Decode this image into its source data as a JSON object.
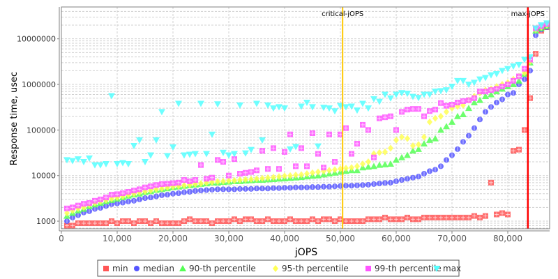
{
  "chart_data": {
    "type": "scatter",
    "xlabel": "jOPS",
    "ylabel": "Response time, usec",
    "yscale": "log",
    "xlim": [
      0,
      87500
    ],
    "ylim": [
      680,
      50000000
    ],
    "x_ticks": [
      0,
      10000,
      20000,
      30000,
      40000,
      50000,
      60000,
      70000,
      80000
    ],
    "x_tick_labels": [
      "0",
      "10,000",
      "20,000",
      "30,000",
      "40,000",
      "50,000",
      "60,000",
      "70,000",
      "80,000"
    ],
    "y_ticks": [
      1000,
      10000,
      100000,
      1000000,
      10000000
    ],
    "y_tick_labels": [
      "1000",
      "10000",
      "100000",
      "1000000",
      "10000000"
    ],
    "grid": true,
    "legend_position": "bottom",
    "markers": [
      {
        "label": "critical-jOPS",
        "x": 50400,
        "color": "#ffc800"
      },
      {
        "label": "max-jOPS",
        "x": 83600,
        "color": "#ff0000"
      }
    ],
    "x": [
      1000,
      2000,
      3000,
      4000,
      5000,
      6000,
      7000,
      8000,
      9000,
      10000,
      11000,
      12000,
      13000,
      14000,
      15000,
      16000,
      17000,
      18000,
      19000,
      20000,
      21000,
      22000,
      23000,
      24000,
      25000,
      26000,
      27000,
      28000,
      29000,
      30000,
      31000,
      32000,
      33000,
      34000,
      35000,
      36000,
      37000,
      38000,
      39000,
      40000,
      41000,
      42000,
      43000,
      44000,
      45000,
      46000,
      47000,
      48000,
      49000,
      50000,
      51000,
      52000,
      53000,
      54000,
      55000,
      56000,
      57000,
      58000,
      59000,
      60000,
      61000,
      62000,
      63000,
      64000,
      65000,
      66000,
      67000,
      68000,
      69000,
      70000,
      71000,
      72000,
      73000,
      74000,
      75000,
      76000,
      77000,
      78000,
      79000,
      80000,
      81000,
      82000,
      83000,
      84000,
      85000,
      86000,
      87000
    ],
    "series": [
      {
        "name": "min",
        "color": "#ff5555",
        "shape": "square",
        "values": [
          800,
          800,
          900,
          900,
          900,
          900,
          900,
          900,
          1000,
          900,
          1000,
          1000,
          900,
          1000,
          1000,
          900,
          1000,
          900,
          900,
          900,
          900,
          1000,
          1100,
          1000,
          1000,
          1000,
          900,
          1000,
          1000,
          1000,
          1100,
          1000,
          1100,
          1100,
          1000,
          1000,
          1100,
          1000,
          1000,
          1000,
          1100,
          1000,
          1000,
          1000,
          1100,
          1000,
          1100,
          1100,
          1000,
          1100,
          1000,
          1000,
          1000,
          1000,
          1100,
          1100,
          1100,
          1200,
          1100,
          1100,
          1100,
          1200,
          1100,
          1100,
          1200,
          1200,
          1200,
          1200,
          1200,
          1200,
          1200,
          1200,
          1200,
          1300,
          1200,
          1300,
          7000,
          1400,
          1500,
          1400,
          35000,
          37000,
          100000,
          500000,
          4700000,
          15000000,
          18000000
        ]
      },
      {
        "name": "median",
        "color": "#5555ff",
        "shape": "circle",
        "values": [
          1000,
          1200,
          1350,
          1550,
          1650,
          1850,
          1950,
          2150,
          2350,
          2450,
          2550,
          2700,
          2800,
          3000,
          3200,
          3300,
          3500,
          3700,
          3800,
          4000,
          4100,
          4300,
          4400,
          4600,
          4700,
          4800,
          4900,
          5000,
          5000,
          5000,
          5000,
          5100,
          5100,
          5100,
          5200,
          5200,
          5200,
          5300,
          5300,
          5400,
          5400,
          5500,
          5500,
          5500,
          5600,
          5600,
          5700,
          5700,
          5800,
          5900,
          6000,
          6000,
          6100,
          6200,
          6300,
          6500,
          6700,
          6900,
          7000,
          7500,
          8000,
          8500,
          9000,
          9500,
          11000,
          12500,
          13500,
          16000,
          22000,
          28000,
          38000,
          55000,
          75000,
          110000,
          170000,
          250000,
          320000,
          400000,
          470000,
          600000,
          650000,
          1000000,
          1300000,
          2000000,
          12000000,
          16000000,
          18000000
        ]
      },
      {
        "name": "90-th percentile",
        "color": "#55ff55",
        "shape": "triangle-up",
        "values": [
          1300,
          1500,
          1700,
          1850,
          2100,
          2300,
          2500,
          2700,
          2900,
          3100,
          3300,
          3600,
          3800,
          4000,
          4300,
          4500,
          4800,
          5000,
          5200,
          5500,
          5700,
          5900,
          6100,
          6300,
          6500,
          6700,
          7000,
          7000,
          7200,
          7300,
          7500,
          7500,
          7700,
          7800,
          8000,
          8000,
          8200,
          8300,
          8500,
          8600,
          8800,
          9000,
          9200,
          9500,
          9800,
          10000,
          10500,
          11000,
          11500,
          12000,
          12500,
          13000,
          13000,
          15000,
          15500,
          16000,
          17000,
          17500,
          18000,
          22000,
          25000,
          28000,
          35000,
          38000,
          50000,
          60000,
          65000,
          100000,
          120000,
          150000,
          200000,
          220000,
          300000,
          400000,
          450000,
          550000,
          600000,
          700000,
          800000,
          900000,
          1000000,
          1200000,
          1700000,
          3000000,
          15000000,
          17000000,
          19000000
        ]
      },
      {
        "name": "95-th percentile",
        "color": "#ffff55",
        "shape": "diamond",
        "values": [
          1500,
          1700,
          1900,
          2000,
          2300,
          2500,
          2700,
          2900,
          3100,
          3300,
          3500,
          3800,
          4000,
          4300,
          4500,
          4700,
          5000,
          5200,
          5500,
          5700,
          5900,
          6100,
          6300,
          6500,
          6700,
          7000,
          7200,
          7400,
          7500,
          7700,
          7800,
          8000,
          8200,
          8300,
          8500,
          8700,
          9000,
          9200,
          9500,
          9800,
          10000,
          10300,
          10500,
          11000,
          11500,
          12000,
          12500,
          13000,
          13500,
          14000,
          14500,
          15000,
          16000,
          18000,
          20000,
          30000,
          32000,
          33000,
          40000,
          60000,
          70000,
          65000,
          45000,
          48000,
          70000,
          150000,
          180000,
          200000,
          250000,
          300000,
          330000,
          350000,
          450000,
          550000,
          650000,
          750000,
          800000,
          900000,
          1000000,
          1100000,
          1300000,
          1500000,
          1800000,
          3200000,
          16000000,
          18000000,
          20000000
        ]
      },
      {
        "name": "99-th percentile",
        "color": "#ff55ff",
        "shape": "square",
        "values": [
          1900,
          2000,
          2200,
          2400,
          2500,
          2800,
          3000,
          3300,
          3800,
          3900,
          4100,
          4400,
          4700,
          5000,
          5500,
          5800,
          6200,
          6500,
          6600,
          6800,
          7000,
          8000,
          7500,
          8000,
          17000,
          8500,
          9000,
          22000,
          20000,
          10000,
          23000,
          11000,
          11500,
          12000,
          13000,
          35000,
          14000,
          40000,
          14000,
          33000,
          80000,
          16000,
          40000,
          16000,
          85000,
          30000,
          15000,
          80000,
          20000,
          80000,
          110000,
          30000,
          50000,
          130000,
          100000,
          25000,
          180000,
          190000,
          200000,
          100000,
          250000,
          280000,
          290000,
          290000,
          200000,
          260000,
          280000,
          390000,
          340000,
          360000,
          400000,
          430000,
          450000,
          500000,
          700000,
          700000,
          750000,
          800000,
          900000,
          1000000,
          1200000,
          1500000,
          2200000,
          3500000,
          17000000,
          19000000,
          21000000
        ]
      },
      {
        "name": "max",
        "color": "#55ffff",
        "shape": "triangle-down",
        "values": [
          22000,
          21000,
          23000,
          20000,
          24000,
          17000,
          17000,
          18000,
          560000,
          18000,
          19000,
          18000,
          45000,
          60000,
          20000,
          28000,
          60000,
          250000,
          27000,
          42000,
          380000,
          28000,
          29000,
          30000,
          380000,
          30000,
          80000,
          370000,
          32000,
          28000,
          30000,
          350000,
          31000,
          37000,
          380000,
          60000,
          350000,
          300000,
          320000,
          300000,
          38000,
          43000,
          330000,
          400000,
          320000,
          44000,
          310000,
          300000,
          260000,
          340000,
          320000,
          330000,
          270000,
          380000,
          300000,
          480000,
          420000,
          600000,
          500000,
          600000,
          650000,
          630000,
          540000,
          510000,
          600000,
          600000,
          700000,
          720000,
          750000,
          900000,
          1200000,
          1200000,
          1000000,
          1100000,
          1300000,
          1400000,
          1600000,
          1700000,
          2000000,
          2200000,
          2500000,
          2700000,
          3500000,
          4000000,
          17000000,
          20000000,
          22000000
        ]
      }
    ]
  }
}
